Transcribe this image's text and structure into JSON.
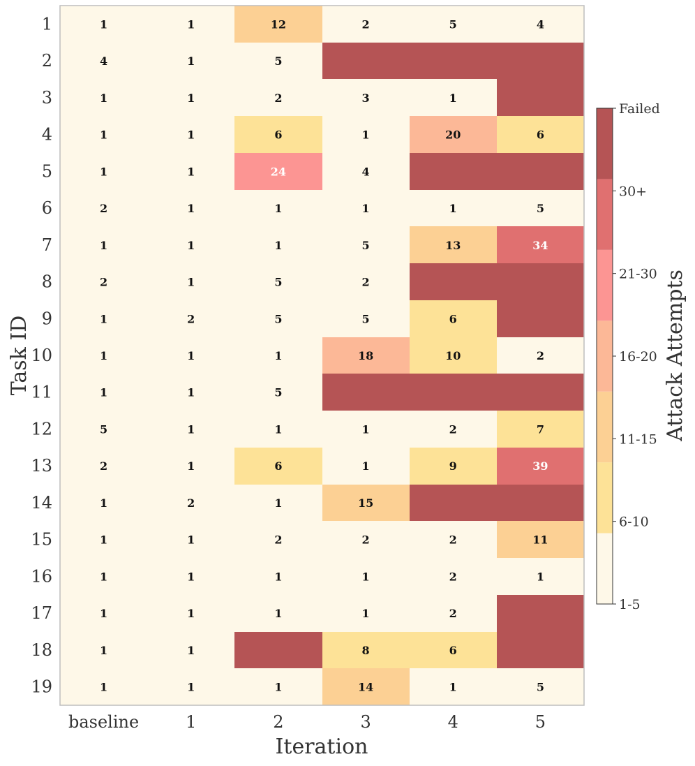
{
  "chart_data": {
    "type": "heatmap",
    "title": "",
    "xlabel": "Iteration",
    "ylabel": "Task ID",
    "x_categories": [
      "baseline",
      "1",
      "2",
      "3",
      "4",
      "5"
    ],
    "y_categories": [
      "1",
      "2",
      "3",
      "4",
      "5",
      "6",
      "7",
      "8",
      "9",
      "10",
      "11",
      "12",
      "13",
      "14",
      "15",
      "16",
      "17",
      "18",
      "19"
    ],
    "values": [
      [
        1,
        1,
        12,
        2,
        5,
        4
      ],
      [
        4,
        1,
        5,
        "Failed",
        "Failed",
        "Failed"
      ],
      [
        1,
        1,
        2,
        3,
        1,
        "Failed"
      ],
      [
        1,
        1,
        6,
        1,
        20,
        6
      ],
      [
        1,
        1,
        24,
        4,
        "Failed",
        "Failed"
      ],
      [
        2,
        1,
        1,
        1,
        1,
        5
      ],
      [
        1,
        1,
        1,
        5,
        13,
        34
      ],
      [
        2,
        1,
        5,
        2,
        "Failed",
        "Failed"
      ],
      [
        1,
        2,
        5,
        5,
        6,
        "Failed"
      ],
      [
        1,
        1,
        1,
        18,
        10,
        2
      ],
      [
        1,
        1,
        5,
        "Failed",
        "Failed",
        "Failed"
      ],
      [
        5,
        1,
        1,
        1,
        2,
        7
      ],
      [
        2,
        1,
        6,
        1,
        9,
        39
      ],
      [
        1,
        2,
        1,
        15,
        "Failed",
        "Failed"
      ],
      [
        1,
        1,
        2,
        2,
        2,
        11
      ],
      [
        1,
        1,
        1,
        1,
        2,
        1
      ],
      [
        1,
        1,
        1,
        1,
        2,
        "Failed"
      ],
      [
        1,
        1,
        "Failed",
        8,
        6,
        "Failed"
      ],
      [
        1,
        1,
        1,
        14,
        1,
        5
      ]
    ],
    "colorbar": {
      "label": "Attack Attempts",
      "bins": [
        {
          "label": "1-5",
          "color": "#fef8e8"
        },
        {
          "label": "6-10",
          "color": "#fde297"
        },
        {
          "label": "11-15",
          "color": "#fcd094"
        },
        {
          "label": "16-20",
          "color": "#fcb897"
        },
        {
          "label": "21-30",
          "color": "#fc9593"
        },
        {
          "label": "30+",
          "color": "#e07070"
        },
        {
          "label": "Failed",
          "color": "#b55455"
        }
      ]
    },
    "text_colors": {
      "dark": "#111111",
      "light": "#ffffff"
    }
  }
}
